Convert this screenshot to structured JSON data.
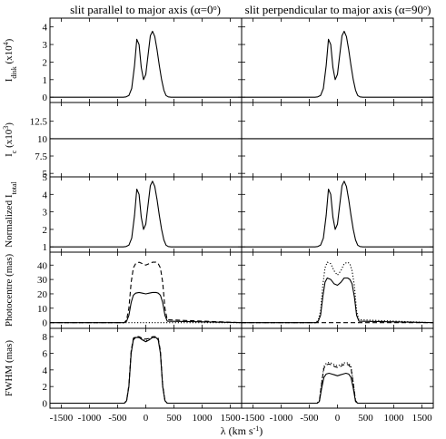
{
  "column_titles": [
    {
      "text": "slit parallel to major axis (α=0",
      "deg": "o",
      "close": ")"
    },
    {
      "text": "slit perpendicular to major axis (α=90",
      "deg": "o",
      "close": ")"
    }
  ],
  "xlabel": {
    "main": "λ (km s",
    "sup": "-1",
    "close": ")"
  },
  "chart_data": {
    "type": "line",
    "x_range": [
      -1700,
      1700
    ],
    "x_ticks": [
      -1500,
      -1000,
      -500,
      0,
      500,
      1000,
      1500
    ],
    "x_tick_labels": [
      "-1500",
      "-1000",
      "-500",
      "0",
      "500",
      "1000",
      "1500"
    ],
    "panels": [
      {
        "ylabel": {
          "main": "I",
          "sub": "disk",
          "mid": " (x10",
          "sup": "4",
          "close": ")"
        },
        "ylim": [
          -0.3,
          4.5
        ],
        "yticks": [
          0,
          1,
          2,
          3,
          4
        ],
        "ytick_labels": [
          "0",
          "1",
          "2",
          "3",
          "4"
        ],
        "columns": [
          {
            "series": [
              {
                "style": "solid",
                "x": [
                  -1700,
                  -400,
                  -350,
                  -300,
                  -250,
                  -200,
                  -160,
                  -120,
                  -80,
                  -40,
                  0,
                  40,
                  80,
                  120,
                  160,
                  200,
                  240,
                  280,
                  320,
                  360,
                  400,
                  450,
                  1700
                ],
                "y": [
                  0,
                  0,
                  0.02,
                  0.1,
                  0.5,
                  1.8,
                  3.3,
                  3.0,
                  1.7,
                  1.0,
                  1.3,
                  2.4,
                  3.5,
                  3.75,
                  3.45,
                  2.7,
                  1.8,
                  1.0,
                  0.4,
                  0.1,
                  0.02,
                  0,
                  0
                ]
              }
            ]
          },
          {
            "series": [
              {
                "style": "solid",
                "x": [
                  -1700,
                  -400,
                  -350,
                  -300,
                  -250,
                  -200,
                  -160,
                  -120,
                  -80,
                  -40,
                  0,
                  40,
                  80,
                  120,
                  160,
                  200,
                  240,
                  280,
                  320,
                  360,
                  400,
                  450,
                  1700
                ],
                "y": [
                  0,
                  0,
                  0.02,
                  0.1,
                  0.5,
                  1.8,
                  3.3,
                  3.0,
                  1.7,
                  1.0,
                  1.3,
                  2.4,
                  3.5,
                  3.75,
                  3.45,
                  2.7,
                  1.8,
                  1.0,
                  0.4,
                  0.1,
                  0.02,
                  0,
                  0
                ]
              }
            ]
          }
        ]
      },
      {
        "ylabel": {
          "main": "I",
          "sub": "c",
          "mid": " (x10",
          "sup": "3",
          "close": ")"
        },
        "ylim": [
          4.5,
          15.2
        ],
        "yticks": [
          5,
          7.5,
          10,
          12.5
        ],
        "ytick_labels": [
          "5",
          "7.5",
          "10",
          "12.5"
        ],
        "columns": [
          {
            "series": [
              {
                "style": "solid",
                "x": [
                  -1700,
                  1700
                ],
                "y": [
                  10,
                  10
                ]
              }
            ]
          },
          {
            "series": [
              {
                "style": "solid",
                "x": [
                  -1700,
                  1700
                ],
                "y": [
                  10,
                  10
                ]
              }
            ]
          }
        ]
      },
      {
        "ylabel": {
          "main": "Normalized I",
          "sub": "total",
          "mid": "",
          "sup": "",
          "close": ""
        },
        "ylim": [
          0.7,
          5.0
        ],
        "yticks": [
          1,
          2,
          3,
          4,
          5
        ],
        "ytick_labels": [
          "1",
          "2",
          "3",
          "4",
          "5"
        ],
        "columns": [
          {
            "series": [
              {
                "style": "solid",
                "x": [
                  -1700,
                  -400,
                  -350,
                  -300,
                  -250,
                  -200,
                  -160,
                  -120,
                  -80,
                  -40,
                  0,
                  40,
                  80,
                  120,
                  160,
                  200,
                  240,
                  280,
                  320,
                  360,
                  400,
                  450,
                  1700
                ],
                "y": [
                  1,
                  1,
                  1.02,
                  1.1,
                  1.5,
                  2.8,
                  4.3,
                  4.0,
                  2.7,
                  2.0,
                  2.3,
                  3.4,
                  4.5,
                  4.75,
                  4.45,
                  3.7,
                  2.8,
                  2.0,
                  1.4,
                  1.1,
                  1.02,
                  1,
                  1
                ]
              }
            ]
          },
          {
            "series": [
              {
                "style": "solid",
                "x": [
                  -1700,
                  -400,
                  -350,
                  -300,
                  -250,
                  -200,
                  -160,
                  -120,
                  -80,
                  -40,
                  0,
                  40,
                  80,
                  120,
                  160,
                  200,
                  240,
                  280,
                  320,
                  360,
                  400,
                  450,
                  1700
                ],
                "y": [
                  1,
                  1,
                  1.02,
                  1.1,
                  1.5,
                  2.8,
                  4.3,
                  4.0,
                  2.7,
                  2.0,
                  2.3,
                  3.4,
                  4.5,
                  4.75,
                  4.45,
                  3.7,
                  2.8,
                  2.0,
                  1.4,
                  1.1,
                  1.02,
                  1,
                  1
                ]
              }
            ]
          }
        ]
      },
      {
        "ylabel": {
          "main": "Photocentre (mas)",
          "sub": "",
          "mid": "",
          "sup": "",
          "close": ""
        },
        "ylim": [
          -4,
          49
        ],
        "yticks": [
          0,
          10,
          20,
          30,
          40
        ],
        "ytick_labels": [
          "0",
          "10",
          "20",
          "30",
          "40"
        ],
        "columns": [
          {
            "series": [
              {
                "style": "solid",
                "x": [
                  -1700,
                  -380,
                  -340,
                  -300,
                  -260,
                  -220,
                  -180,
                  -120,
                  -60,
                  0,
                  60,
                  120,
                  180,
                  220,
                  260,
                  300,
                  340,
                  380,
                  1700
                ],
                "y": [
                  0,
                  0,
                  1,
                  5,
                  14,
                  19,
                  20.5,
                  21,
                  20.5,
                  20,
                  20.5,
                  21,
                  21,
                  20.5,
                  19,
                  14,
                  5,
                  1,
                  0
                ]
              },
              {
                "style": "dashed",
                "x": [
                  -1700,
                  -380,
                  -340,
                  -300,
                  -260,
                  -220,
                  -180,
                  -120,
                  -60,
                  0,
                  60,
                  120,
                  180,
                  220,
                  260,
                  300,
                  340,
                  380,
                  1700
                ],
                "y": [
                  0,
                  0,
                  2,
                  10,
                  28,
                  38,
                  41,
                  42,
                  41,
                  40,
                  41,
                  42,
                  42,
                  41,
                  38,
                  28,
                  10,
                  2,
                  0
                ]
              },
              {
                "style": "dotted",
                "x": [
                  -1700,
                  1700
                ],
                "y": [
                  0,
                  0
                ]
              }
            ]
          },
          {
            "series": [
              {
                "style": "solid",
                "x": [
                  -1700,
                  -380,
                  -340,
                  -300,
                  -260,
                  -220,
                  -180,
                  -120,
                  -60,
                  0,
                  60,
                  120,
                  180,
                  220,
                  260,
                  300,
                  340,
                  380,
                  1700
                ],
                "y": [
                  0,
                  0,
                  1,
                  5,
                  18,
                  28,
                  31,
                  30,
                  27,
                  26,
                  28,
                  31,
                  31,
                  30,
                  27,
                  18,
                  5,
                  1,
                  0
                ]
              },
              {
                "style": "dotted",
                "x": [
                  -1700,
                  -380,
                  -340,
                  -300,
                  -260,
                  -220,
                  -180,
                  -120,
                  -60,
                  0,
                  60,
                  120,
                  180,
                  220,
                  260,
                  300,
                  340,
                  380,
                  1700
                ],
                "y": [
                  0,
                  0,
                  2,
                  8,
                  26,
                  38,
                  42,
                  41,
                  36,
                  33,
                  36,
                  41,
                  42,
                  41,
                  36,
                  26,
                  8,
                  2,
                  0
                ]
              },
              {
                "style": "dashed",
                "x": [
                  -1700,
                  1700
                ],
                "y": [
                  0,
                  0
                ]
              }
            ]
          }
        ]
      },
      {
        "ylabel": {
          "main": "FWHM (mas)",
          "sub": "",
          "mid": "",
          "sup": "",
          "close": ""
        },
        "ylim": [
          -0.6,
          9.0
        ],
        "yticks": [
          0,
          2,
          4,
          6,
          8
        ],
        "ytick_labels": [
          "0",
          "2",
          "4",
          "6",
          "8"
        ],
        "columns": [
          {
            "series": [
              {
                "style": "solid",
                "x": [
                  -1700,
                  -380,
                  -340,
                  -300,
                  -260,
                  -220,
                  -180,
                  -120,
                  -60,
                  0,
                  60,
                  120,
                  180,
                  220,
                  260,
                  300,
                  340,
                  380,
                  1700
                ],
                "y": [
                  0,
                  0,
                  0.3,
                  2,
                  6,
                  7.6,
                  7.9,
                  7.9,
                  7.6,
                  7.4,
                  7.6,
                  7.9,
                  7.9,
                  7.6,
                  6,
                  2,
                  0.3,
                  0,
                  0
                ]
              },
              {
                "style": "dashed",
                "x": [
                  -1700,
                  -380,
                  -340,
                  -300,
                  -260,
                  -220,
                  -180,
                  -120,
                  -60,
                  0,
                  60,
                  120,
                  180,
                  220,
                  260,
                  300,
                  340,
                  380,
                  1700
                ],
                "y": [
                  0,
                  0,
                  0.3,
                  2.2,
                  6.3,
                  7.8,
                  8.0,
                  8.0,
                  7.8,
                  7.7,
                  7.8,
                  8.0,
                  8.0,
                  7.8,
                  6.3,
                  2.2,
                  0.3,
                  0,
                  0
                ]
              },
              {
                "style": "dotted",
                "x": [
                  -1700,
                  -380,
                  -340,
                  -300,
                  -260,
                  -220,
                  -180,
                  -120,
                  -60,
                  0,
                  60,
                  120,
                  180,
                  220,
                  260,
                  300,
                  340,
                  380,
                  1700
                ],
                "y": [
                  0,
                  0,
                  0.3,
                  2.1,
                  6.1,
                  7.7,
                  7.9,
                  7.9,
                  7.7,
                  7.5,
                  7.7,
                  7.9,
                  7.9,
                  7.7,
                  6.1,
                  2.1,
                  0.3,
                  0,
                  0
                ]
              }
            ]
          },
          {
            "series": [
              {
                "style": "solid",
                "x": [
                  -1700,
                  -360,
                  -320,
                  -280,
                  -240,
                  -200,
                  -150,
                  -100,
                  -50,
                  0,
                  50,
                  100,
                  150,
                  200,
                  240,
                  280,
                  320,
                  360,
                  1700
                ],
                "y": [
                  0,
                  0,
                  0.2,
                  1.8,
                  3.1,
                  3.5,
                  3.6,
                  3.5,
                  3.4,
                  3.3,
                  3.4,
                  3.5,
                  3.6,
                  3.5,
                  3.1,
                  1.8,
                  0.2,
                  0,
                  0
                ]
              },
              {
                "style": "dashed",
                "x": [
                  -1700,
                  -360,
                  -320,
                  -280,
                  -240,
                  -200,
                  -150,
                  -100,
                  -50,
                  0,
                  50,
                  100,
                  150,
                  200,
                  240,
                  280,
                  320,
                  360,
                  1700
                ],
                "y": [
                  0,
                  0,
                  0.3,
                  2.4,
                  4.2,
                  4.6,
                  4.7,
                  4.6,
                  4.4,
                  4.3,
                  4.4,
                  4.6,
                  4.7,
                  4.6,
                  4.2,
                  2.4,
                  0.3,
                  0,
                  0
                ]
              },
              {
                "style": "dotted",
                "x": [
                  -1700,
                  -360,
                  -320,
                  -280,
                  -240,
                  -200,
                  -150,
                  -100,
                  -50,
                  0,
                  50,
                  100,
                  150,
                  200,
                  240,
                  280,
                  320,
                  360,
                  1700
                ],
                "y": [
                  0,
                  0,
                  0.3,
                  2.5,
                  4.4,
                  4.8,
                  4.9,
                  4.8,
                  4.6,
                  4.5,
                  4.6,
                  4.8,
                  4.9,
                  4.8,
                  4.4,
                  2.5,
                  0.3,
                  0,
                  0
                ]
              }
            ]
          }
        ]
      }
    ]
  }
}
